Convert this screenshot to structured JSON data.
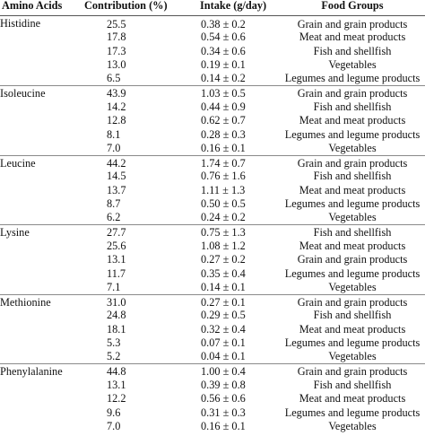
{
  "columns": {
    "amino_acids": "Amino Acids",
    "contribution": "Contribution (%)",
    "intake": "Intake (g/day)",
    "food_groups": "Food Groups"
  },
  "groups": [
    {
      "amino_acid": "Histidine",
      "rows": [
        {
          "contribution": "25.5",
          "intake": "0.38 ± 0.2",
          "food_group": "Grain and grain products"
        },
        {
          "contribution": "17.8",
          "intake": "0.54 ± 0.6",
          "food_group": "Meat and meat products"
        },
        {
          "contribution": "17.3",
          "intake": "0.34 ± 0.6",
          "food_group": "Fish and shellfish"
        },
        {
          "contribution": "13.0",
          "intake": "0.19 ± 0.1",
          "food_group": "Vegetables"
        },
        {
          "contribution": "6.5",
          "intake": "0.14 ± 0.2",
          "food_group": "Legumes and legume products"
        }
      ]
    },
    {
      "amino_acid": "Isoleucine",
      "rows": [
        {
          "contribution": "43.9",
          "intake": "1.03 ± 0.5",
          "food_group": "Grain and grain products"
        },
        {
          "contribution": "14.2",
          "intake": "0.44 ± 0.9",
          "food_group": "Fish and shellfish"
        },
        {
          "contribution": "12.8",
          "intake": "0.62 ± 0.7",
          "food_group": "Meat and meat products"
        },
        {
          "contribution": "8.1",
          "intake": "0.28 ± 0.3",
          "food_group": "Legumes and legume products"
        },
        {
          "contribution": "7.0",
          "intake": "0.16 ± 0.1",
          "food_group": "Vegetables"
        }
      ]
    },
    {
      "amino_acid": "Leucine",
      "rows": [
        {
          "contribution": "44.2",
          "intake": "1.74 ± 0.7",
          "food_group": "Grain and grain products"
        },
        {
          "contribution": "14.5",
          "intake": "0.76 ± 1.6",
          "food_group": "Fish and shellfish"
        },
        {
          "contribution": "13.7",
          "intake": "1.11 ± 1.3",
          "food_group": "Meat and meat products"
        },
        {
          "contribution": "8.7",
          "intake": "0.50 ± 0.5",
          "food_group": "Legumes and legume products"
        },
        {
          "contribution": "6.2",
          "intake": "0.24 ± 0.2",
          "food_group": "Vegetables"
        }
      ]
    },
    {
      "amino_acid": "Lysine",
      "rows": [
        {
          "contribution": "27.7",
          "intake": "0.75 ± 1.3",
          "food_group": "Fish and shellfish"
        },
        {
          "contribution": "25.6",
          "intake": "1.08 ± 1.2",
          "food_group": "Meat and meat products"
        },
        {
          "contribution": "13.1",
          "intake": "0.27 ± 0.2",
          "food_group": "Grain and grain products"
        },
        {
          "contribution": "11.7",
          "intake": "0.35 ± 0.4",
          "food_group": "Legumes and legume products"
        },
        {
          "contribution": "7.1",
          "intake": "0.14 ± 0.1",
          "food_group": "Vegetables"
        }
      ]
    },
    {
      "amino_acid": "Methionine",
      "rows": [
        {
          "contribution": "31.0",
          "intake": "0.27 ± 0.1",
          "food_group": "Grain and grain products"
        },
        {
          "contribution": "24.8",
          "intake": "0.29 ± 0.5",
          "food_group": "Fish and shellfish"
        },
        {
          "contribution": "18.1",
          "intake": "0.32 ± 0.4",
          "food_group": "Meat and meat products"
        },
        {
          "contribution": "5.3",
          "intake": "0.07 ± 0.1",
          "food_group": "Legumes and legume products"
        },
        {
          "contribution": "5.2",
          "intake": "0.04 ± 0.1",
          "food_group": "Vegetables"
        }
      ]
    },
    {
      "amino_acid": "Phenylalanine",
      "rows": [
        {
          "contribution": "44.8",
          "intake": "1.00 ± 0.4",
          "food_group": "Grain and grain products"
        },
        {
          "contribution": "13.1",
          "intake": "0.39 ± 0.8",
          "food_group": "Fish and shellfish"
        },
        {
          "contribution": "12.2",
          "intake": "0.56 ± 0.6",
          "food_group": "Meat and meat products"
        },
        {
          "contribution": "9.6",
          "intake": "0.31 ± 0.3",
          "food_group": "Legumes and legume products"
        },
        {
          "contribution": "7.0",
          "intake": "0.16 ± 0.1",
          "food_group": "Vegetables"
        }
      ]
    }
  ]
}
